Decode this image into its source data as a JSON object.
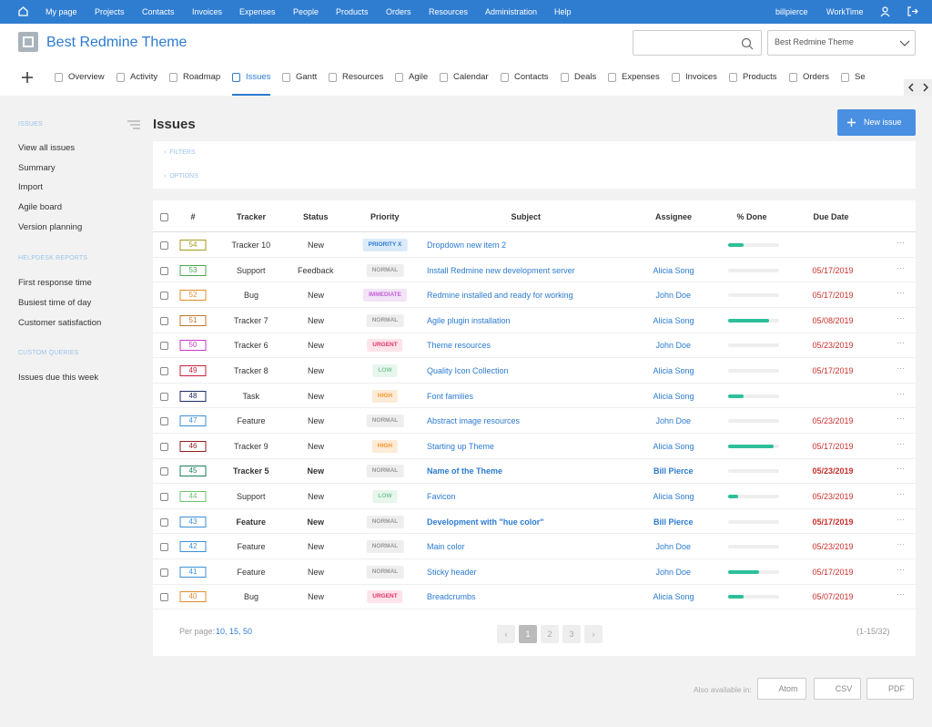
{
  "top_menu": [
    "My page",
    "Projects",
    "Contacts",
    "Invoices",
    "Expenses",
    "People",
    "Products",
    "Orders",
    "Resources",
    "Administration",
    "Help"
  ],
  "user_menu": [
    "billpierce",
    "WorkTime"
  ],
  "header": {
    "title": "Best Redmine Theme",
    "project_select": "Best Redmine Theme"
  },
  "tabs": [
    "Overview",
    "Activity",
    "Roadmap",
    "Issues",
    "Gantt",
    "Resources",
    "Agile",
    "Calendar",
    "Contacts",
    "Deals",
    "Expenses",
    "Invoices",
    "Products",
    "Orders",
    "Se"
  ],
  "sidebar": [
    {
      "heading": "ISSUES",
      "links": [
        "View all issues",
        "Summary",
        "Import",
        "Agile board",
        "Version planning"
      ]
    },
    {
      "heading": "HELPDESK REPORTS",
      "links": [
        "First response time",
        "Busiest time of day",
        "Customer satisfaction"
      ]
    },
    {
      "heading": "CUSTOM QUERIES",
      "links": [
        "Issues due this week"
      ]
    }
  ],
  "page": {
    "title": "Issues",
    "new_issue": "New issue",
    "filters": "FILTERS",
    "options": "OPTIONS"
  },
  "table": {
    "columns": [
      "#",
      "Tracker",
      "Status",
      "Priority",
      "Subject",
      "Assignee",
      "% Done",
      "Due Date"
    ],
    "rows": [
      {
        "id": 54,
        "tracker": "Tracker 10",
        "status": "New",
        "priority": "PRIORITY X",
        "subject": "Dropdown new item 2",
        "assignee": null,
        "done": 30,
        "due": null
      },
      {
        "id": 53,
        "tracker": "Support",
        "status": "Feedback",
        "priority": "NORMAL",
        "subject": "Install Redmine new development server",
        "assignee": "Alicia Song",
        "done": 0,
        "due": "05/17/2019"
      },
      {
        "id": 52,
        "tracker": "Bug",
        "status": "New",
        "priority": "IMMEDIATE",
        "subject": "Redmine installed and ready for working",
        "assignee": "John Doe",
        "done": 0,
        "due": "05/17/2019"
      },
      {
        "id": 51,
        "tracker": "Tracker 7",
        "status": "New",
        "priority": "NORMAL",
        "subject": "Agile plugin installation",
        "assignee": "Alicia Song",
        "done": 80,
        "due": "05/08/2019"
      },
      {
        "id": 50,
        "tracker": "Tracker 6",
        "status": "New",
        "priority": "URGENT",
        "subject": "Theme resources",
        "assignee": "John Doe",
        "done": 0,
        "due": "05/23/2019"
      },
      {
        "id": 49,
        "tracker": "Tracker 8",
        "status": "New",
        "priority": "LOW",
        "subject": "Quality Icon Collection",
        "assignee": "Alicia Song",
        "done": 0,
        "due": "05/17/2019"
      },
      {
        "id": 48,
        "tracker": "Task",
        "status": "New",
        "priority": "HIGH",
        "subject": "Font families",
        "assignee": "Alicia Song",
        "done": 30,
        "due": null
      },
      {
        "id": 47,
        "tracker": "Feature",
        "status": "New",
        "priority": "NORMAL",
        "subject": "Abstract image resources",
        "assignee": "John Doe",
        "done": 0,
        "due": "05/23/2019"
      },
      {
        "id": 46,
        "tracker": "Tracker 9",
        "status": "New",
        "priority": "HIGH",
        "subject": "Starting up Theme",
        "assignee": "Alicia Song",
        "done": 90,
        "due": "05/17/2019"
      },
      {
        "id": 45,
        "tracker": "Tracker 5",
        "status": "New",
        "priority": "NORMAL",
        "subject": "Name of the Theme",
        "assignee": "Bill Pierce",
        "done": 0,
        "due": "05/23/2019"
      },
      {
        "id": 44,
        "tracker": "Support",
        "status": "New",
        "priority": "LOW",
        "subject": "Favicon",
        "assignee": "Alicia Song",
        "done": 20,
        "due": "05/23/2019"
      },
      {
        "id": 43,
        "tracker": "Feature",
        "status": "New",
        "priority": "NORMAL",
        "subject": "Development with \"hue color\"",
        "assignee": "Bill Pierce",
        "done": 0,
        "due": "05/17/2019"
      },
      {
        "id": 42,
        "tracker": "Feature",
        "status": "New",
        "priority": "NORMAL",
        "subject": "Main color",
        "assignee": "John Doe",
        "done": 0,
        "due": "05/23/2019"
      },
      {
        "id": 41,
        "tracker": "Feature",
        "status": "New",
        "priority": "NORMAL",
        "subject": "Sticky header",
        "assignee": "John Doe",
        "done": 60,
        "due": "05/17/2019"
      },
      {
        "id": 40,
        "tracker": "Bug",
        "status": "New",
        "priority": "URGENT",
        "subject": "Breadcrumbs",
        "assignee": "Alicia Song",
        "done": 30,
        "due": "05/07/2019"
      }
    ]
  },
  "pagination": {
    "per_page_label": "Per page:",
    "per_page": "10, 15, 50",
    "pages": [
      "1",
      "2",
      "3"
    ],
    "count": "(1-15/32)"
  },
  "footer": {
    "label": "Also available in:",
    "formats": [
      "Atom",
      "CSV",
      "PDF"
    ]
  }
}
